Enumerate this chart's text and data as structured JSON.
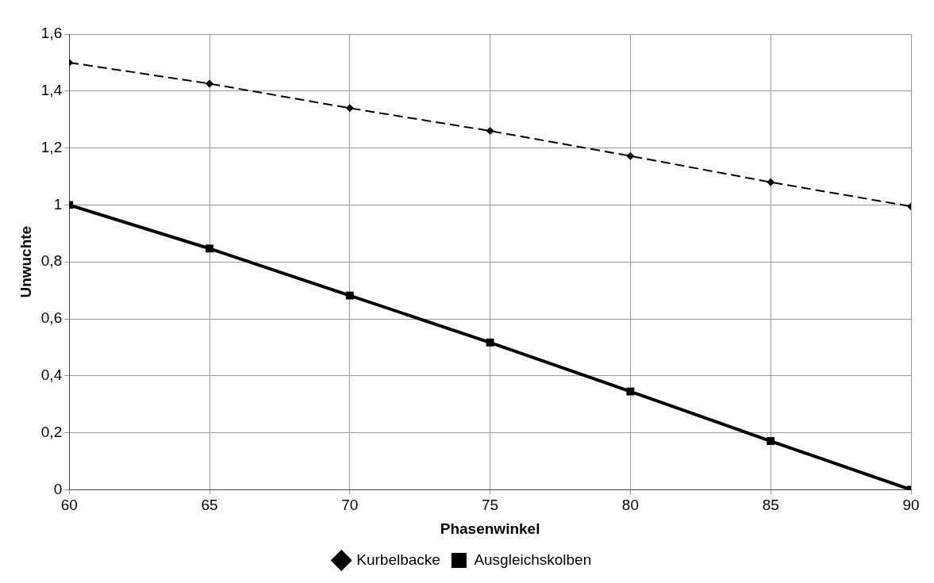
{
  "chart_data": {
    "type": "line",
    "xlabel": "Phasenwinkel",
    "ylabel": "Unwuchte",
    "x": [
      60,
      65,
      70,
      75,
      80,
      85,
      90
    ],
    "series": [
      {
        "name": "Kurbelbacke",
        "color": "#000000",
        "values": [
          1.5,
          1.426,
          1.34,
          1.26,
          1.172,
          1.08,
          0.995
        ],
        "marker": "diamond",
        "line_style": "dashed"
      },
      {
        "name": "Ausgleichskolben",
        "color": "#000000",
        "values": [
          1.0,
          0.847,
          0.682,
          0.517,
          0.345,
          0.171,
          0.0
        ],
        "marker": "square",
        "line_style": "solid"
      }
    ],
    "xlim": [
      60,
      90
    ],
    "xticks": [
      60,
      65,
      70,
      75,
      80,
      85,
      90
    ],
    "ylim": [
      0,
      1.6
    ],
    "yticks": [
      0,
      {
        "value": 0.2,
        "label": "0,2"
      },
      {
        "value": 0.4,
        "label": "0,4"
      },
      {
        "value": 0.6,
        "label": "0,6"
      },
      {
        "value": 0.8,
        "label": "0,8"
      },
      1,
      {
        "value": 1.2,
        "label": "1,2"
      },
      {
        "value": 1.4,
        "label": "1,4"
      },
      {
        "value": 1.6,
        "label": "1,6"
      }
    ],
    "grid": true,
    "legend": "bottom"
  }
}
